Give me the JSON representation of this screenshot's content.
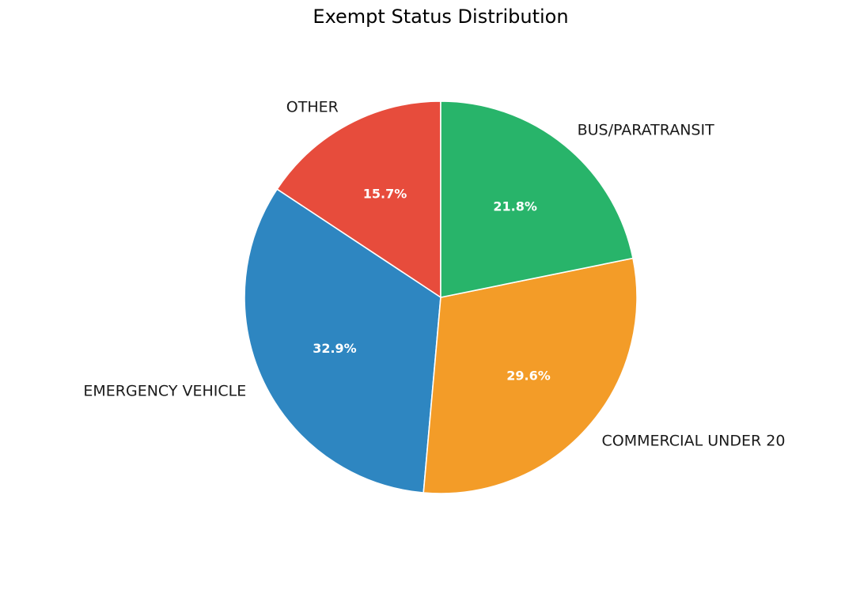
{
  "chart_data": {
    "type": "pie",
    "title": "Exempt Status Distribution",
    "slices": [
      {
        "label": "OTHER",
        "value": 15.7,
        "pct_label": "15.7%",
        "color": "#e74c3c"
      },
      {
        "label": "EMERGENCY VEHICLE",
        "value": 32.9,
        "pct_label": "32.9%",
        "color": "#2e86c1"
      },
      {
        "label": "COMMERCIAL UNDER 20",
        "value": 29.6,
        "pct_label": "29.6%",
        "color": "#f39c28"
      },
      {
        "label": "BUS/PARATRANSIT",
        "value": 21.8,
        "pct_label": "21.8%",
        "color": "#28b46a"
      }
    ],
    "start_angle_deg": 90,
    "direction": "counterclockwise",
    "wedge_edge_color": "#ffffff"
  }
}
